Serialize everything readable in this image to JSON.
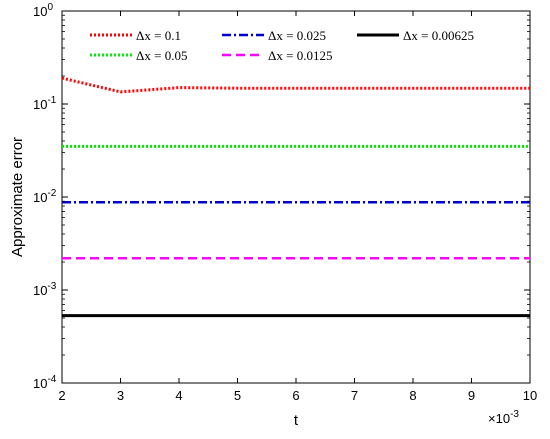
{
  "chart_data": {
    "type": "line",
    "xlabel": "t",
    "ylabel": "Approximate error",
    "x_scale_label": "×10",
    "x_scale_exp": "-3",
    "y_scale": "log",
    "xlim": [
      2,
      10
    ],
    "ylim": [
      0.0001,
      1
    ],
    "x_ticks": [
      "2",
      "3",
      "4",
      "5",
      "6",
      "7",
      "8",
      "9",
      "10"
    ],
    "y_ticks": [
      {
        "base": "10",
        "exp": "0",
        "value": 1
      },
      {
        "base": "10",
        "exp": "-1",
        "value": 0.1
      },
      {
        "base": "10",
        "exp": "-2",
        "value": 0.01
      },
      {
        "base": "10",
        "exp": "-3",
        "value": 0.001
      },
      {
        "base": "10",
        "exp": "-4",
        "value": 0.0001
      }
    ],
    "legend_placement": "top",
    "series": [
      {
        "name": "Δx = 0.1",
        "color": "#ff0000",
        "style": "dotted",
        "x": [
          2,
          3,
          4,
          5,
          6,
          7,
          8,
          9,
          10
        ],
        "y": [
          0.19,
          0.135,
          0.15,
          0.148,
          0.148,
          0.148,
          0.148,
          0.148,
          0.148
        ]
      },
      {
        "name": "Δx = 0.05",
        "color": "#00ee00",
        "style": "dotted",
        "x": [
          2,
          3,
          4,
          5,
          6,
          7,
          8,
          9,
          10
        ],
        "y": [
          0.035,
          0.035,
          0.035,
          0.035,
          0.035,
          0.035,
          0.035,
          0.035,
          0.035
        ]
      },
      {
        "name": "Δx = 0.025",
        "color": "#0000cc",
        "style": "dashdot",
        "x": [
          2,
          3,
          4,
          5,
          6,
          7,
          8,
          9,
          10
        ],
        "y": [
          0.0088,
          0.0088,
          0.0088,
          0.0088,
          0.0088,
          0.0088,
          0.0088,
          0.0088,
          0.0088
        ]
      },
      {
        "name": "Δx = 0.0125",
        "color": "#ff00ff",
        "style": "dashed",
        "x": [
          2,
          3,
          4,
          5,
          6,
          7,
          8,
          9,
          10
        ],
        "y": [
          0.0022,
          0.0022,
          0.0022,
          0.0022,
          0.0022,
          0.0022,
          0.0022,
          0.0022,
          0.0022
        ]
      },
      {
        "name": "Δx = 0.00625",
        "color": "#000000",
        "style": "solid",
        "x": [
          2,
          3,
          4,
          5,
          6,
          7,
          8,
          9,
          10
        ],
        "y": [
          0.00053,
          0.00053,
          0.00053,
          0.00053,
          0.00053,
          0.00053,
          0.00053,
          0.00053,
          0.00053
        ]
      }
    ]
  }
}
